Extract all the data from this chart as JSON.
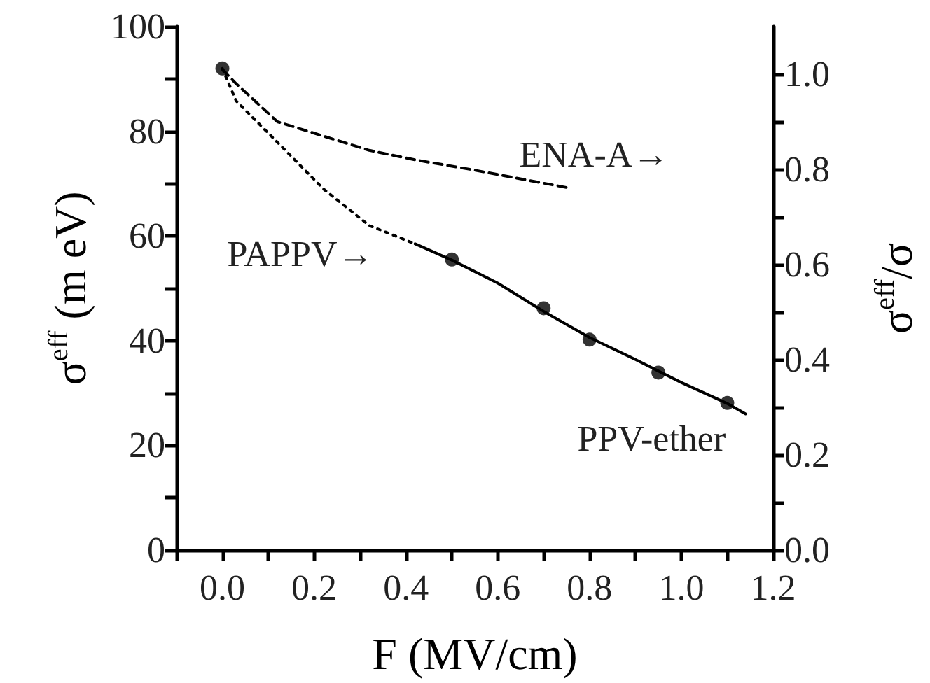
{
  "chart_data": {
    "type": "line",
    "xlabel": "F (MV/cm)",
    "ylabel": "σ$^{eff}$ (m eV)",
    "y2label": "σ$^{eff}$/σ",
    "xlim": [
      -0.1,
      1.2
    ],
    "xticks": [
      {
        "value": -0.1,
        "label": null
      },
      {
        "value": 0,
        "label": "0.0"
      },
      {
        "value": 0.1,
        "label": null
      },
      {
        "value": 0.2,
        "label": "0.2"
      },
      {
        "value": 0.3,
        "label": null
      },
      {
        "value": 0.4,
        "label": "0.4"
      },
      {
        "value": 0.5,
        "label": null
      },
      {
        "value": 0.6,
        "label": "0.6"
      },
      {
        "value": 0.7,
        "label": null
      },
      {
        "value": 0.8,
        "label": "0.8"
      },
      {
        "value": 0.9,
        "label": null
      },
      {
        "value": 1.0,
        "label": "1.0"
      },
      {
        "value": 1.1,
        "label": null
      },
      {
        "value": 1.2,
        "label": "1.2"
      }
    ],
    "ylim": [
      0,
      100
    ],
    "yticks": [
      0,
      {
        "value": 10,
        "label": null
      },
      20,
      {
        "value": 30,
        "label": null
      },
      40,
      {
        "value": 50,
        "label": null
      },
      60,
      {
        "value": 70,
        "label": null
      },
      80,
      {
        "value": 90,
        "label": null
      },
      100
    ],
    "y2lim": [
      0,
      1.1
    ],
    "y2ticks": [
      {
        "value": 0,
        "label": "0.0"
      },
      {
        "value": 0.1,
        "label": null
      },
      {
        "value": 0.2,
        "label": "0.2"
      },
      {
        "value": 0.3,
        "label": null
      },
      {
        "value": 0.4,
        "label": "0.4"
      },
      {
        "value": 0.5,
        "label": null
      },
      {
        "value": 0.6,
        "label": "0.6"
      },
      {
        "value": 0.7,
        "label": null
      },
      {
        "value": 0.8,
        "label": "0.8"
      },
      {
        "value": 0.9,
        "label": null
      },
      {
        "value": 1.0,
        "label": "1.0"
      }
    ],
    "series": [
      {
        "type": "scatter",
        "marker": "circle",
        "color": "#000000",
        "x": [
          0,
          0.5,
          0.7,
          0.8,
          0.95,
          1.1
        ],
        "values": [
          92,
          55.5,
          46.2,
          40.2,
          33.9,
          28.1
        ]
      },
      {
        "marker": "none",
        "line_style": "solid",
        "color": "#000000",
        "x": [
          0.42,
          0.5,
          0.6,
          0.7,
          0.8,
          0.9,
          1.0,
          1.1,
          1.14
        ],
        "values": [
          58.5,
          55.4,
          51,
          45.6,
          40.6,
          36.4,
          32,
          28,
          26
        ]
      },
      {
        "marker": "none",
        "line_style": "dotted",
        "color": "#000000",
        "x": [
          0,
          0.03,
          0.12,
          0.22,
          0.32,
          0.42
        ],
        "values": [
          92,
          85.8,
          77.9,
          69,
          62,
          58.5
        ]
      },
      {
        "marker": "none",
        "line_style": "dashed",
        "axis": "y2",
        "color": "#000000",
        "x": [
          0,
          0.03,
          0.12,
          0.32,
          0.42,
          0.54,
          0.76
        ],
        "values": [
          1.01,
          0.98,
          0.9,
          0.84,
          0.82,
          0.8,
          0.76
        ]
      }
    ],
    "annotations": [
      "ENA-A→",
      "PAPPV→",
      "PPV-ether"
    ]
  }
}
